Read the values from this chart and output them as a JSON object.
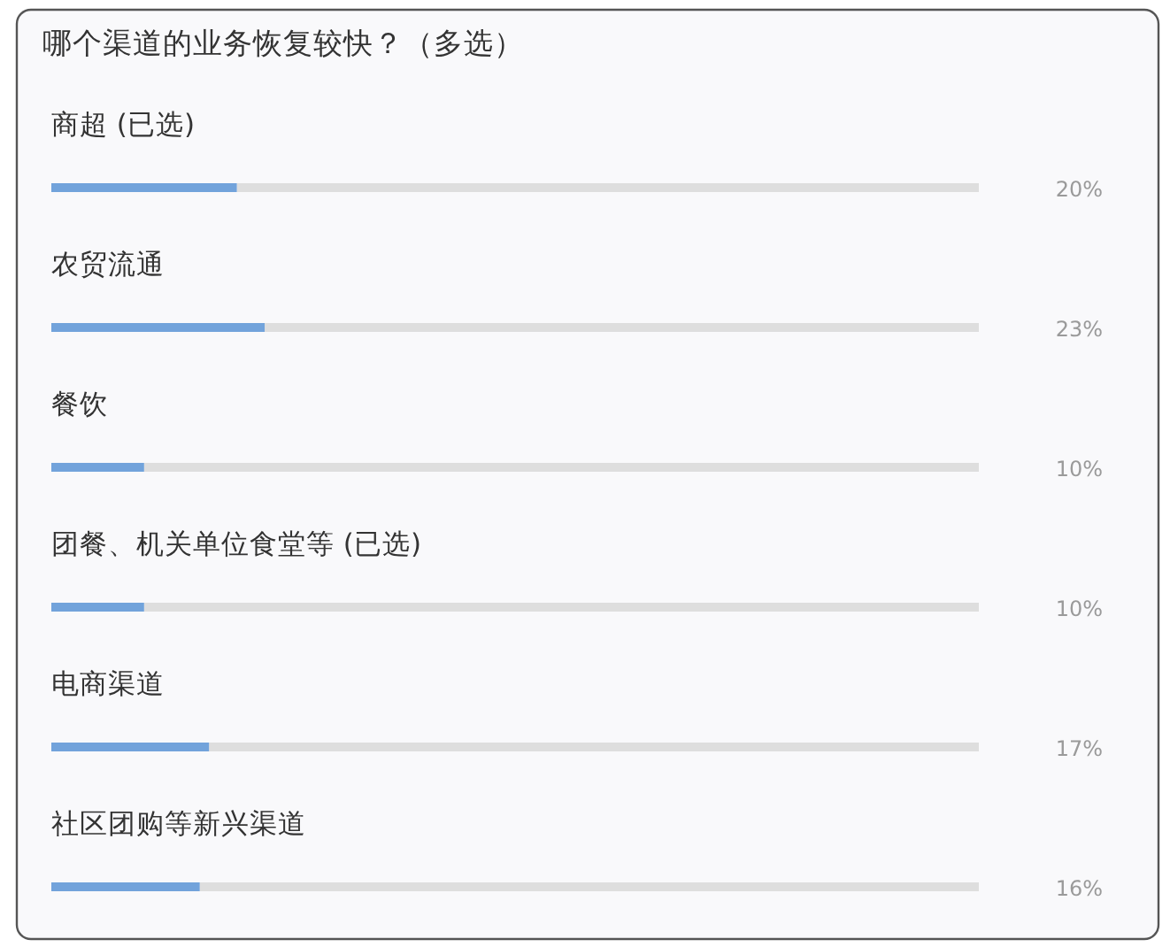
{
  "chart_data": {
    "type": "bar",
    "orientation": "horizontal",
    "title": "哪个渠道的业务恢复较快？（多选）",
    "categories": [
      "商超 (已选)",
      "农贸流通",
      "餐饮",
      "团餐、机关单位食堂等 (已选)",
      "电商渠道",
      "社区团购等新兴渠道"
    ],
    "values": [
      20,
      23,
      10,
      10,
      17,
      16
    ],
    "value_labels": [
      "20%",
      "23%",
      "10%",
      "10%",
      "17%",
      "16%"
    ],
    "color": "#72a3db",
    "xlim": [
      0,
      100
    ]
  }
}
